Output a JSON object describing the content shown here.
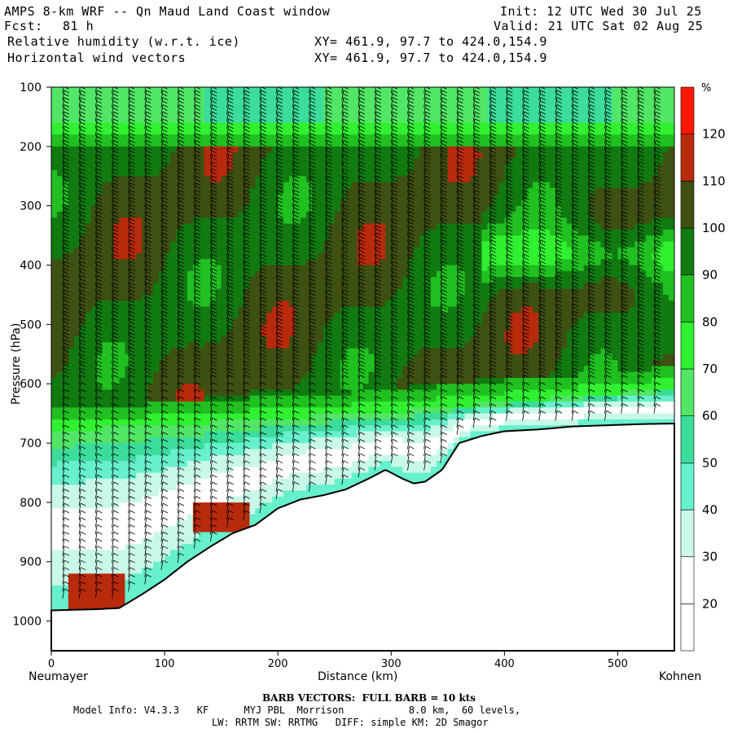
{
  "header": {
    "title": "AMPS 8-km WRF -- Qn Maud Land Coast window",
    "fcst_label": "Fcst:",
    "fcst_value": "81 h",
    "init": "Init: 12 UTC Wed 30 Jul 25",
    "valid": "Valid: 21 UTC Sat 02 Aug 25",
    "field1": "Relative humidity (w.r.t. ice)",
    "field2": "Horizontal wind vectors",
    "xy1": "XY= 461.9, 97.7 to 424.0,154.9",
    "xy2": "XY= 461.9, 97.7 to 424.0,154.9"
  },
  "chart_data": {
    "type": "heatmap",
    "title": "Relative humidity (w.r.t. ice)",
    "xlabel": "Distance (km)",
    "ylabel": "Pressure (hPa)",
    "xlim": [
      0,
      550
    ],
    "ylim": [
      1050,
      100
    ],
    "x_ticks": [
      0,
      100,
      200,
      300,
      400,
      500
    ],
    "y_ticks": [
      100,
      200,
      300,
      400,
      500,
      600,
      700,
      800,
      900,
      1000
    ],
    "left_endpoint": "Neumayer",
    "right_endpoint": "Kohnen",
    "colorbar": {
      "unit": "%",
      "levels": [
        20,
        30,
        40,
        50,
        60,
        70,
        80,
        90,
        100,
        110,
        120
      ],
      "colors": [
        "#ffffff",
        "#ffffff",
        "#c8f8e8",
        "#66f0cc",
        "#3cdc9c",
        "#52e666",
        "#30f030",
        "#20c020",
        "#117a11",
        "#3e5012",
        "#b82a0c",
        "#ff1800"
      ]
    },
    "terrain_profile": {
      "x_km": [
        0,
        20,
        40,
        60,
        80,
        100,
        120,
        140,
        160,
        180,
        200,
        220,
        240,
        260,
        280,
        295,
        310,
        320,
        330,
        345,
        360,
        380,
        400,
        430,
        460,
        490,
        520,
        550
      ],
      "p_hpa": [
        982,
        981,
        980,
        978,
        955,
        930,
        900,
        875,
        852,
        838,
        810,
        795,
        788,
        778,
        760,
        745,
        760,
        768,
        765,
        745,
        700,
        688,
        680,
        677,
        672,
        670,
        668,
        667
      ]
    },
    "rh_bands_note": "Moist layer (90-110%) between ~180 and ~650 hPa; driest air (20-40%) near 650-780 hPa; localized >110% near 950 hPa at 20-60 km and 820 hPa at 130-170 km",
    "barb_legend": "BARB VECTORS:  FULL BARB = 10 kts"
  },
  "footer": {
    "line1": "Model Info: V4.3.3   KF      MYJ PBL  Morrison           8.0 km,  60 levels,",
    "line2": "LW: RRTM SW: RRTMG   DIFF: simple KM: 2D Smagor"
  }
}
